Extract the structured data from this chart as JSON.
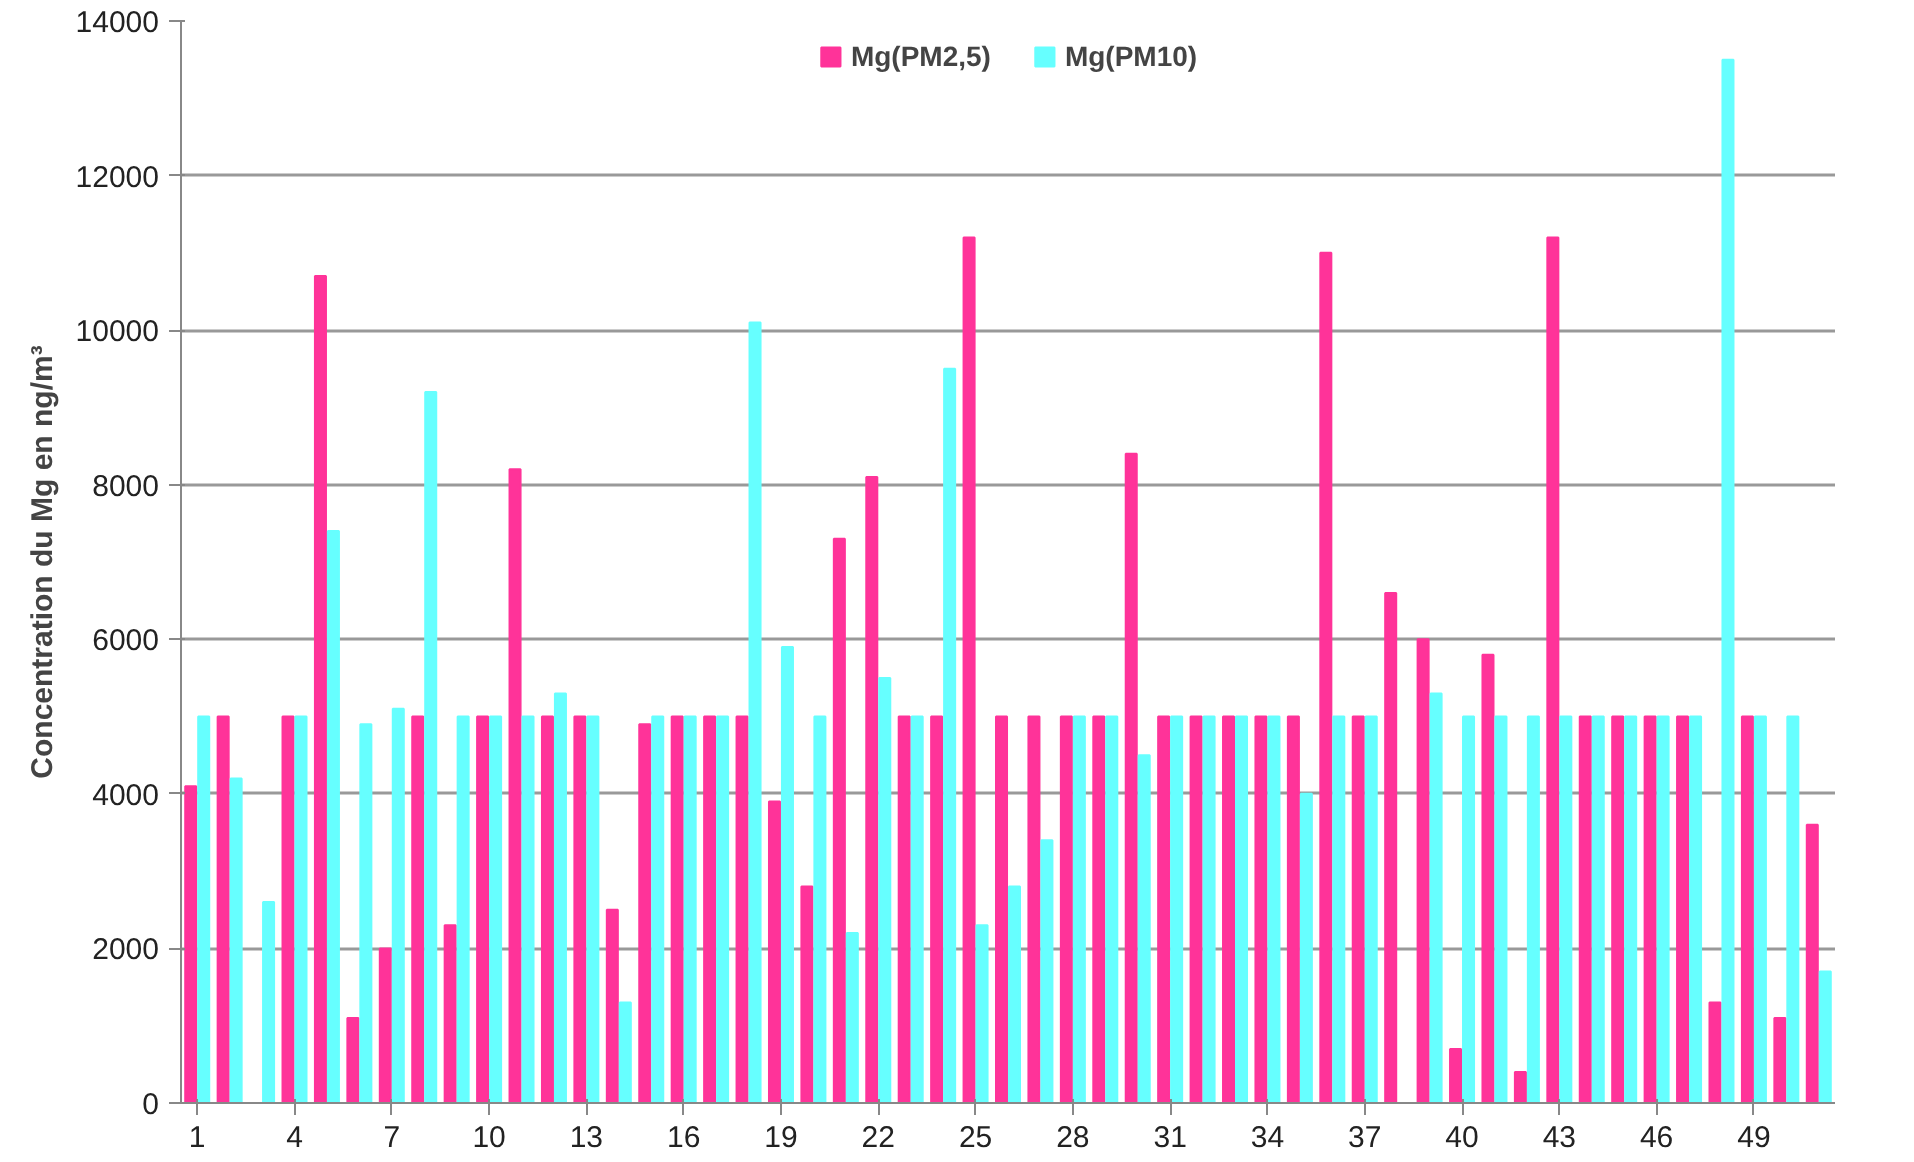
{
  "chart_data": {
    "type": "bar",
    "ylabel": "Concentration du Mg en ng/m³",
    "categories": [
      "1",
      null,
      null,
      "4",
      null,
      null,
      "7",
      null,
      null,
      "10",
      null,
      null,
      "13",
      null,
      null,
      "16",
      null,
      null,
      "19",
      null,
      null,
      "22",
      null,
      null,
      "25",
      null,
      null,
      "28",
      null,
      null,
      "31",
      null,
      null,
      "34",
      null,
      null,
      "37",
      null,
      null,
      "40",
      null,
      null,
      "43",
      null,
      null,
      "46",
      null,
      null,
      "49",
      null,
      null
    ],
    "series": [
      {
        "name": "Mg(PM2,5)",
        "color": "#ff3399",
        "values": [
          4100,
          5000,
          0,
          5000,
          10700,
          1100,
          2000,
          5000,
          2300,
          5000,
          8200,
          5000,
          5000,
          2500,
          4900,
          5000,
          5000,
          5000,
          3900,
          2800,
          7300,
          8100,
          5000,
          5000,
          11200,
          5000,
          5000,
          5000,
          5000,
          8400,
          5000,
          5000,
          5000,
          5000,
          5000,
          11000,
          5000,
          6600,
          6000,
          700,
          5800,
          400,
          11200,
          5000,
          5000,
          5000,
          5000,
          1300,
          5000,
          1100,
          3600
        ]
      },
      {
        "name": "Mg(PM10)",
        "color": "#66ffff",
        "values": [
          5000,
          4200,
          2600,
          5000,
          7400,
          4900,
          5100,
          9200,
          5000,
          5000,
          5000,
          5300,
          5000,
          1300,
          5000,
          5000,
          5000,
          10100,
          5900,
          5000,
          2200,
          5500,
          5000,
          9500,
          2300,
          2800,
          3400,
          5000,
          5000,
          4500,
          5000,
          5000,
          5000,
          5000,
          4000,
          5000,
          5000,
          0,
          5300,
          5000,
          5000,
          5000,
          5000,
          5000,
          5000,
          5000,
          5000,
          13500,
          5000,
          5000,
          1700
        ]
      }
    ],
    "ylim": [
      0,
      14000
    ],
    "yticks": [
      0,
      2000,
      4000,
      6000,
      8000,
      10000,
      12000,
      14000
    ],
    "grid": "y",
    "legend": "top",
    "marker": "square"
  }
}
